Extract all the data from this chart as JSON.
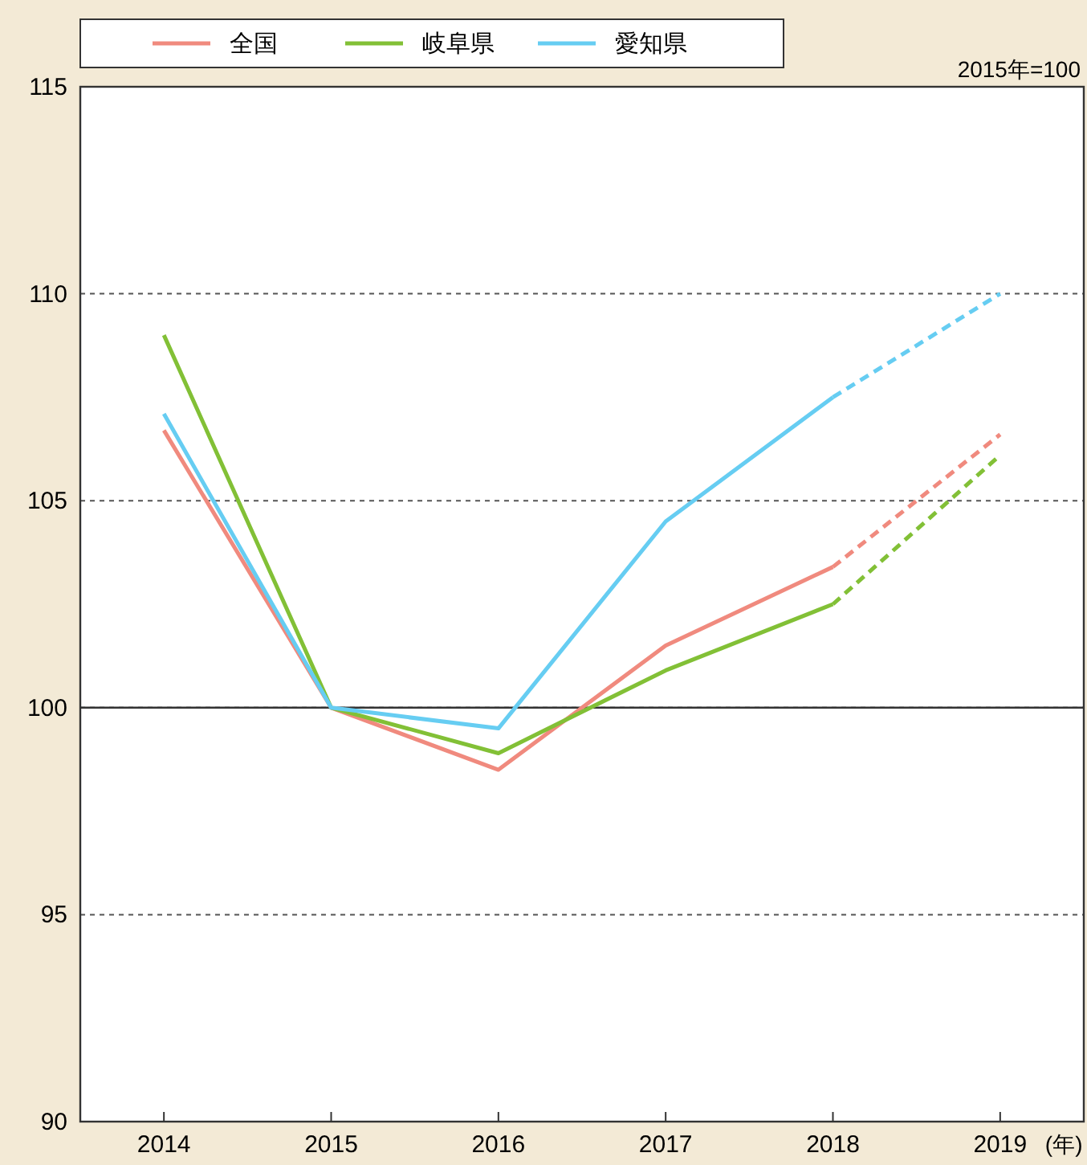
{
  "chart_data": {
    "type": "line",
    "categories": [
      "2014",
      "2015",
      "2016",
      "2017",
      "2018",
      "2019"
    ],
    "xlabel": "(年)",
    "annotations": [
      "2015年=100"
    ],
    "series": [
      {
        "name": "全国",
        "color": "#f08a7e",
        "values": [
          106.7,
          100,
          98.5,
          101.5,
          103.4,
          null
        ]
      },
      {
        "name": "岐阜県",
        "color": "#82c036",
        "values": [
          109.0,
          100,
          98.9,
          100.9,
          102.5,
          null
        ]
      },
      {
        "name": "愛知県",
        "color": "#66cdf2",
        "values": [
          107.1,
          100,
          99.5,
          104.5,
          107.5,
          null
        ]
      },
      {
        "color": "#f08a7e",
        "line_style": "dashed",
        "values": [
          null,
          null,
          null,
          null,
          103.4,
          106.6
        ]
      },
      {
        "color": "#82c036",
        "line_style": "dashed",
        "values": [
          null,
          null,
          null,
          null,
          102.5,
          106.1
        ]
      },
      {
        "color": "#66cdf2",
        "line_style": "dashed",
        "values": [
          null,
          null,
          null,
          null,
          107.5,
          110.0
        ]
      }
    ],
    "ylim": [
      90,
      115
    ],
    "yticks": [
      90,
      95,
      100,
      105,
      110,
      115
    ],
    "grid": "y",
    "line_style": "solid",
    "marker": "none",
    "legend": "top left",
    "ref_lines": [
      {
        "axis": "y",
        "value": 100,
        "color": "#333333",
        "line_style": "solid"
      }
    ]
  }
}
